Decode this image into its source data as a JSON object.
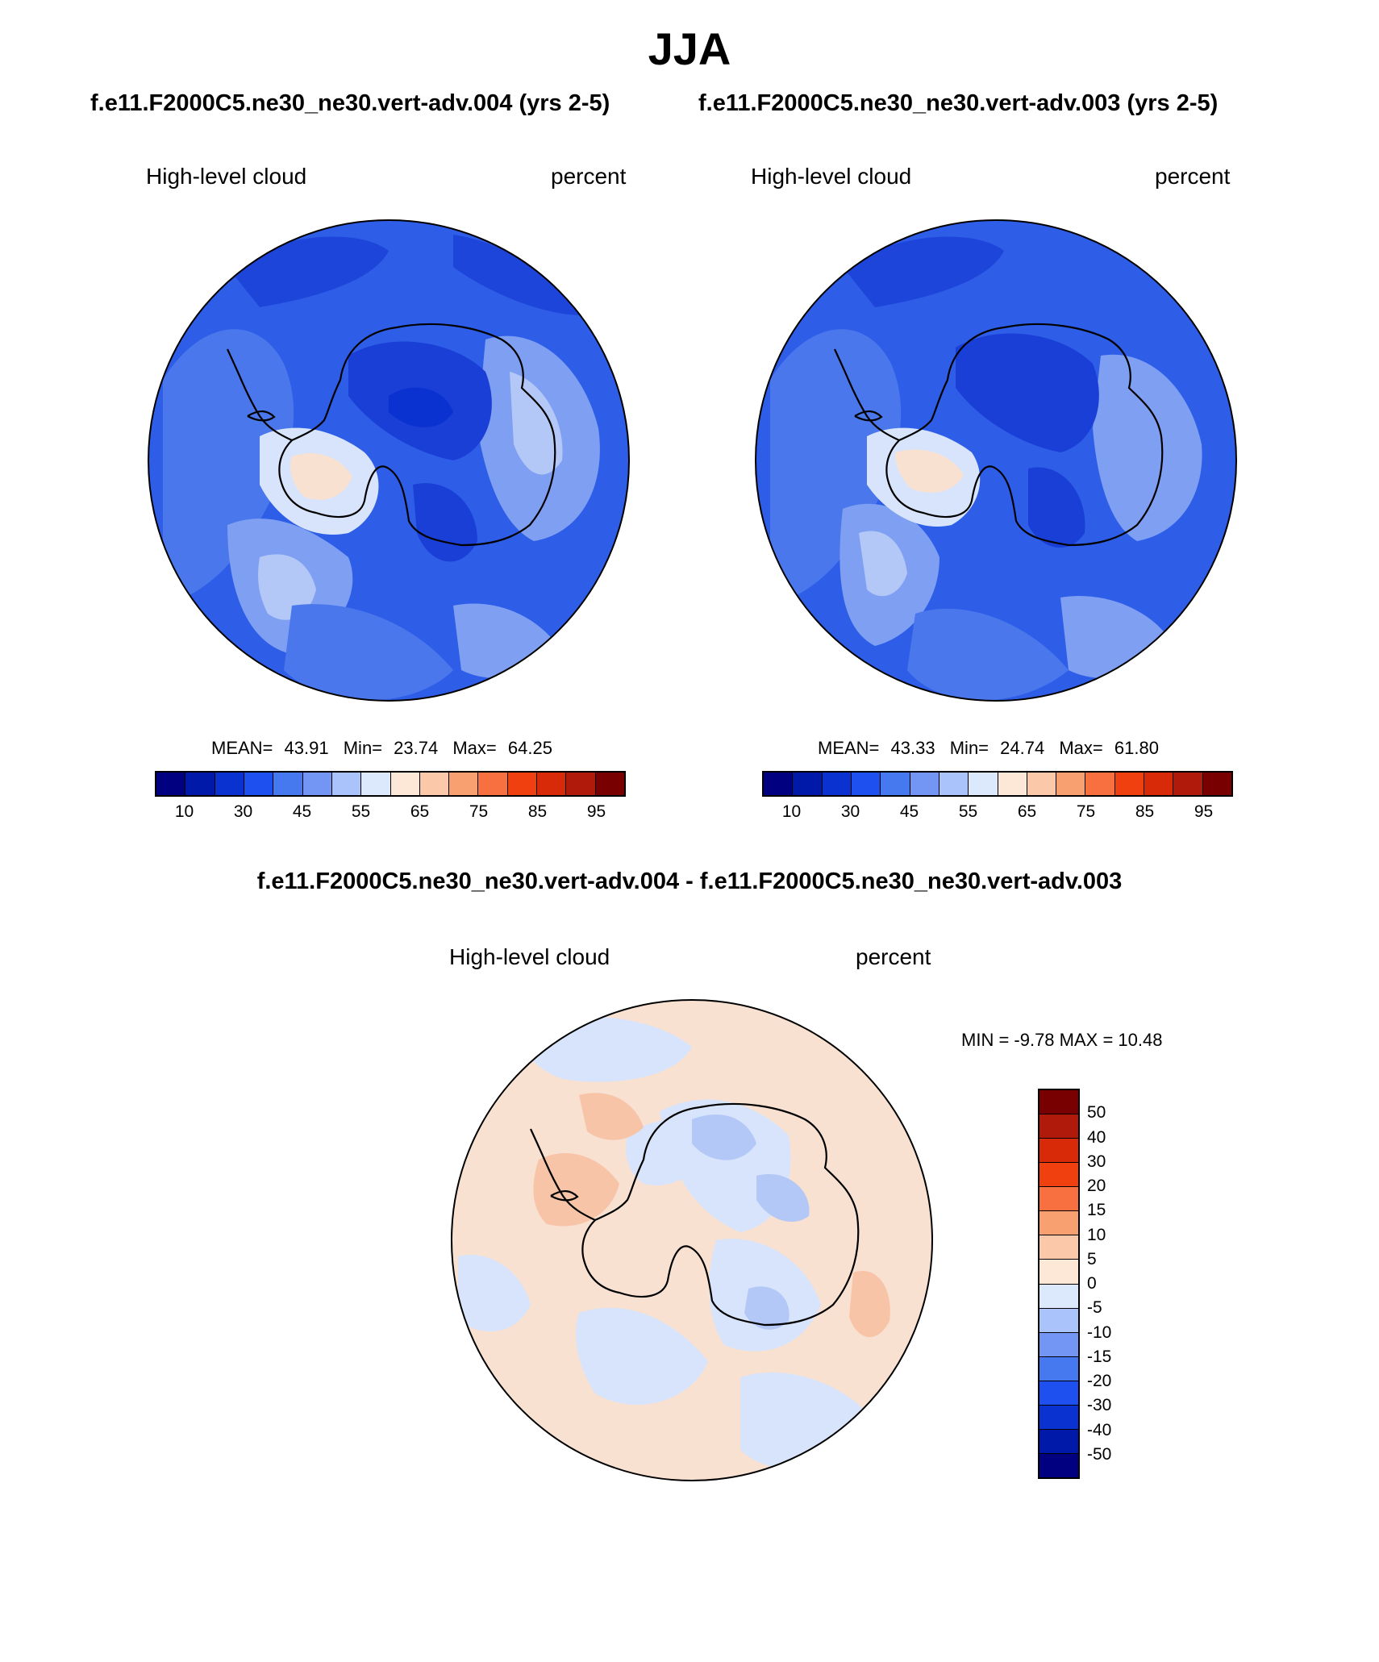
{
  "page": {
    "title": "JJA",
    "case_test": "f.e11.F2000C5.ne30_ne30.vert-adv.004 (yrs 2-5)",
    "case_control": "f.e11.F2000C5.ne30_ne30.vert-adv.003 (yrs 2-5)",
    "diff_title": "f.e11.F2000C5.ne30_ne30.vert-adv.004 - f.e11.F2000C5.ne30_ne30.vert-adv.003"
  },
  "panels": [
    {
      "variable": "High-level cloud",
      "units": "percent",
      "stats": {
        "mean_label": "MEAN=",
        "mean": "43.91",
        "min_label": "Min=",
        "min": "23.74",
        "max_label": "Max=",
        "max": "64.25"
      }
    },
    {
      "variable": "High-level cloud",
      "units": "percent",
      "stats": {
        "mean_label": "MEAN=",
        "mean": "43.33",
        "min_label": "Min=",
        "min": "24.74",
        "max_label": "Max=",
        "max": "61.80"
      }
    }
  ],
  "diff_panel": {
    "variable": "High-level cloud",
    "units": "percent",
    "minmax_text": "MIN =  -9.78 MAX =  10.48"
  },
  "colorbar_main": {
    "colors": [
      "#000080",
      "#0019a8",
      "#0a32d0",
      "#1e50f0",
      "#4678f0",
      "#7396f5",
      "#aac3fa",
      "#dce9fc",
      "#fde8d8",
      "#fcc8aa",
      "#f9a070",
      "#f87040",
      "#f04010",
      "#d82a08",
      "#b01a0a",
      "#780000"
    ],
    "tick_labels": [
      "10",
      "30",
      "45",
      "55",
      "65",
      "75",
      "85",
      "95"
    ]
  },
  "colorbar_diff": {
    "colors": [
      "#780000",
      "#b01a0a",
      "#d82a08",
      "#f04010",
      "#f87040",
      "#f9a070",
      "#fcc8aa",
      "#fde8d8",
      "#dce9fc",
      "#aac3fa",
      "#7396f5",
      "#4678f0",
      "#1e50f0",
      "#0a32d0",
      "#0019a8",
      "#000080"
    ],
    "tick_labels": [
      "50",
      "40",
      "30",
      "20",
      "15",
      "10",
      "5",
      "0",
      "-5",
      "-10",
      "-15",
      "-20",
      "-30",
      "-40",
      "-50"
    ]
  },
  "map_colors": {
    "blue_dark": "#1a3fd6",
    "blue_mid": "#2e5ee8",
    "blue_base": "#4a78ec",
    "blue_light": "#7e9ff2",
    "blue_pale": "#b3c8f7",
    "blue_paler": "#d7e4fb",
    "peach": "#f9e1d2",
    "peach_dark": "#f7c4a7",
    "coast": "#000000"
  }
}
